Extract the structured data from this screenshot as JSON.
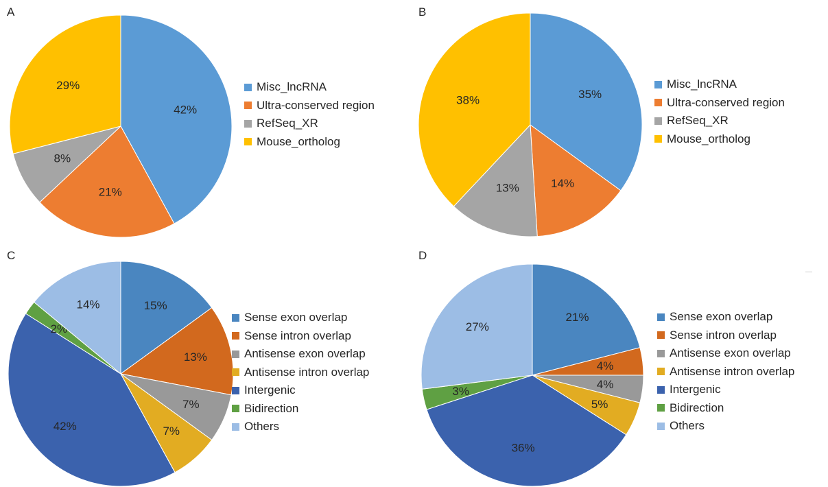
{
  "chart_data": [
    {
      "panel": "A",
      "type": "pie",
      "categories": [
        "Misc_lncRNA",
        "Ultra-conserved region",
        "RefSeq_XR",
        "Mouse_ortholog"
      ],
      "values": [
        42,
        21,
        8,
        29
      ],
      "labels": [
        "42%",
        "21%",
        "8%",
        "29%"
      ],
      "colors": [
        "#5b9bd5",
        "#ed7d31",
        "#a5a5a5",
        "#ffc000"
      ],
      "legend_labels": [
        "Misc_lncRNA",
        "Ultra-conserved region",
        "RefSeq_XR",
        "Mouse_ortholog"
      ],
      "legend_colors": [
        "#5b9bd5",
        "#ed7d31",
        "#a5a5a5",
        "#ffc000"
      ],
      "legend": "right"
    },
    {
      "panel": "B",
      "type": "pie",
      "categories": [
        "Misc_lncRNA",
        "Ultra-conserved region",
        "RefSeq_XR",
        "Mouse_ortholog"
      ],
      "values": [
        35,
        14,
        13,
        38
      ],
      "labels": [
        "35%",
        "14%",
        "13%",
        "38%"
      ],
      "colors": [
        "#5b9bd5",
        "#ed7d31",
        "#a5a5a5",
        "#ffc000"
      ],
      "legend_labels": [
        "Misc_lncRNA",
        "Ultra-conserved region",
        "RefSeq_XR",
        "Mouse_ortholog"
      ],
      "legend_colors": [
        "#5b9bd5",
        "#ed7d31",
        "#a5a5a5",
        "#ffc000"
      ],
      "legend": "right"
    },
    {
      "panel": "C",
      "type": "pie",
      "categories": [
        "Sense exon overlap",
        "Sense intron overlap",
        "Antisense exon overlap",
        "Antisense intron overlap",
        "Intergenic",
        "Bidirection",
        "Others"
      ],
      "values": [
        15,
        13,
        7,
        7,
        42,
        2,
        14
      ],
      "labels": [
        "15%",
        "13%",
        "7%",
        "7%",
        "42%",
        "2%",
        "14%"
      ],
      "colors": [
        "#4a86c0",
        "#d2691e",
        "#999999",
        "#e2ac22",
        "#3b62ad",
        "#5fa043",
        "#9cbde5"
      ],
      "legend_labels": [
        "Sense exon overlap",
        "Sense intron overlap",
        "Antisense exon overlap",
        "Antisense intron overlap",
        "Intergenic",
        "Bidirection",
        "Others"
      ],
      "legend_colors": [
        "#4a86c0",
        "#d2691e",
        "#999999",
        "#e2ac22",
        "#3b62ad",
        "#5fa043",
        "#9cbde5"
      ],
      "legend": "right"
    },
    {
      "panel": "D",
      "type": "pie",
      "categories": [
        "Sense exon overlap",
        "Sense intron overlap",
        "Antisense exon overlap",
        "Antisense intron overlap",
        "Intergenic",
        "Bidirection",
        "Others"
      ],
      "values": [
        21,
        4,
        4,
        5,
        36,
        3,
        27
      ],
      "labels": [
        "21%",
        "4%",
        "4%",
        "5%",
        "36%",
        "3%",
        "27%"
      ],
      "colors": [
        "#4a86c0",
        "#d2691e",
        "#999999",
        "#e2ac22",
        "#3b62ad",
        "#5fa043",
        "#9cbde5"
      ],
      "legend_labels": [
        "Sense exon overlap",
        "Sense intron overlap",
        "Antisense exon overlap",
        "Antisense intron overlap",
        "Intergenic",
        "Bidirection",
        "Others"
      ],
      "legend_colors": [
        "#4a86c0",
        "#d2691e",
        "#999999",
        "#e2ac22",
        "#3b62ad",
        "#5fa043",
        "#9cbde5"
      ],
      "legend": "right"
    }
  ]
}
